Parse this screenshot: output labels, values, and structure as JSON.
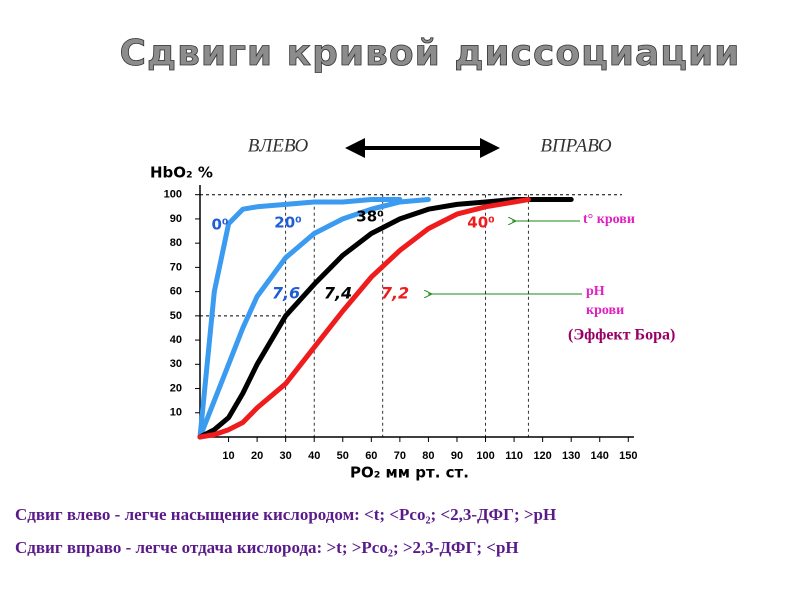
{
  "chart_data": {
    "type": "line",
    "title": "Сдвиги кривой диссоциации",
    "left_label": "ВЛЕВО",
    "right_label": "ВПРАВО",
    "y_label": "HbO₂  %",
    "x_label": "PO₂  мм рт. ст.",
    "x": [
      0,
      5,
      10,
      15,
      20,
      30,
      40,
      50,
      60,
      70,
      80,
      90,
      100,
      110,
      115,
      120,
      130
    ],
    "series": [
      {
        "name": "0⁰",
        "color": "#3a9bf0",
        "values": [
          0,
          60,
          88,
          94,
          95,
          96,
          97,
          97,
          98,
          98,
          null,
          null,
          null,
          null,
          null,
          null,
          null
        ]
      },
      {
        "name": "20⁰",
        "color": "#3a9bf0",
        "values": [
          0,
          15,
          30,
          45,
          58,
          74,
          84,
          90,
          94,
          97,
          98,
          null,
          null,
          null,
          null,
          null,
          null
        ]
      },
      {
        "name": "38⁰",
        "color": "#000000",
        "values": [
          0,
          3,
          8,
          18,
          30,
          50,
          63,
          75,
          84,
          90,
          94,
          96,
          97,
          98,
          98,
          98,
          98
        ]
      },
      {
        "name": "40⁰",
        "color": "#ee1c1c",
        "values": [
          0,
          1,
          3,
          6,
          12,
          22,
          37,
          52,
          66,
          77,
          86,
          92,
          95,
          97,
          98,
          null,
          null
        ]
      }
    ],
    "ph_labels": [
      "7,6",
      "7,4",
      "7,2"
    ],
    "reference_x": [
      30,
      40,
      64,
      100,
      115
    ],
    "xlim": [
      0,
      152
    ],
    "ylim": [
      0,
      104
    ],
    "xticks": [
      10,
      20,
      30,
      40,
      50,
      60,
      70,
      80,
      90,
      100,
      110,
      120,
      130,
      140,
      150
    ],
    "yticks": [
      10,
      20,
      30,
      40,
      50,
      60,
      70,
      80,
      90,
      100
    ],
    "temp_note": "t° крови",
    "ph_note": [
      "pH",
      "крови"
    ],
    "bohr_note": "(Эффект Бора)",
    "footer": [
      "Сдвиг влево - легче насыщение кислородом: <t; <Pco₂; <2,3-ДФГ; >pH",
      "Сдвиг вправо - легче отдача кислорода: >t; >Pco₂; >2,3-ДФГ; <pH"
    ]
  }
}
